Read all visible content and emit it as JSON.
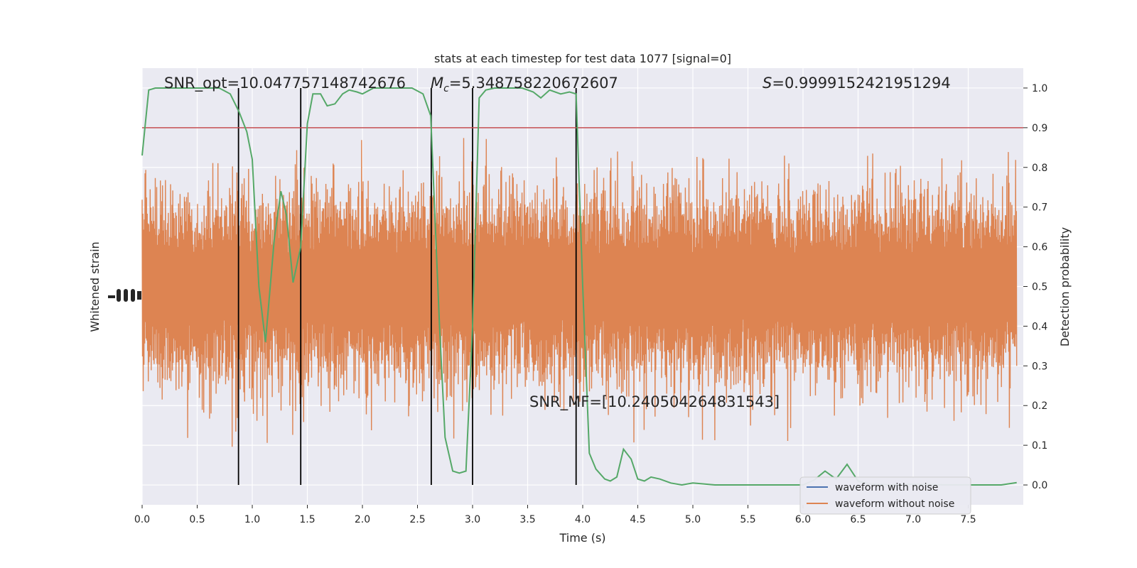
{
  "chart_data": {
    "type": "line",
    "title": "stats at each timestep for test data 1077 [signal=0]",
    "xlabel": "Time (s)",
    "ylabel_left": "Whitened strain",
    "ylabel_right": "Detection probability",
    "xlim": [
      0.0,
      8.0
    ],
    "ylim_right": [
      -0.05,
      1.05
    ],
    "x_ticks": [
      "0.0",
      "0.5",
      "1.0",
      "1.5",
      "2.0",
      "2.5",
      "3.0",
      "3.5",
      "4.0",
      "4.5",
      "5.0",
      "5.5",
      "6.0",
      "6.5",
      "7.0",
      "7.5"
    ],
    "x_tick_values": [
      0,
      0.5,
      1,
      1.5,
      2,
      2.5,
      3,
      3.5,
      4,
      4.5,
      5,
      5.5,
      6,
      6.5,
      7,
      7.5
    ],
    "y_ticks_right": [
      "0.0",
      "0.1",
      "0.2",
      "0.3",
      "0.4",
      "0.5",
      "0.6",
      "0.7",
      "0.8",
      "0.9",
      "1.0"
    ],
    "y_tick_values_right": [
      0,
      0.1,
      0.2,
      0.3,
      0.4,
      0.5,
      0.6,
      0.7,
      0.8,
      0.9,
      1.0
    ],
    "grid": true,
    "legend_position": "lower-right",
    "legend": [
      {
        "name": "waveform with noise",
        "color": "#4c72b0"
      },
      {
        "name": "waveform without noise",
        "color": "#dd8452"
      }
    ],
    "threshold": {
      "y": 0.9,
      "color": "#c44e52"
    },
    "vertical_lines_x": [
      0.875,
      1.44,
      2.625,
      3.0,
      3.94
    ],
    "detection_probability": {
      "color": "#55a868",
      "x": [
        0.0,
        0.06,
        0.12,
        0.25,
        0.5,
        0.7,
        0.8,
        0.88,
        0.95,
        1.0,
        1.06,
        1.12,
        1.2,
        1.26,
        1.31,
        1.37,
        1.44,
        1.5,
        1.55,
        1.62,
        1.68,
        1.75,
        1.82,
        1.88,
        1.95,
        2.0,
        2.1,
        2.2,
        2.3,
        2.45,
        2.55,
        2.62,
        2.7,
        2.75,
        2.82,
        2.88,
        2.94,
        3.0,
        3.06,
        3.12,
        3.2,
        3.3,
        3.45,
        3.55,
        3.62,
        3.7,
        3.8,
        3.88,
        3.94,
        4.0,
        4.06,
        4.12,
        4.2,
        4.25,
        4.31,
        4.37,
        4.44,
        4.5,
        4.56,
        4.62,
        4.7,
        4.8,
        4.9,
        5.0,
        5.2,
        5.5,
        5.8,
        6.0,
        6.1,
        6.2,
        6.3,
        6.4,
        6.5,
        6.6,
        6.8,
        7.0,
        7.3,
        7.6,
        7.8,
        7.94
      ],
      "y": [
        0.83,
        0.995,
        1.0,
        1.0,
        1.0,
        1.0,
        0.985,
        0.94,
        0.89,
        0.82,
        0.5,
        0.36,
        0.62,
        0.74,
        0.68,
        0.51,
        0.6,
        0.91,
        0.985,
        0.985,
        0.955,
        0.96,
        0.985,
        0.995,
        0.99,
        0.985,
        1.0,
        1.0,
        1.0,
        1.0,
        0.985,
        0.93,
        0.4,
        0.12,
        0.035,
        0.03,
        0.035,
        0.4,
        0.975,
        0.995,
        1.0,
        1.0,
        1.0,
        0.99,
        0.975,
        0.995,
        0.985,
        0.99,
        0.985,
        0.5,
        0.08,
        0.04,
        0.015,
        0.01,
        0.02,
        0.09,
        0.065,
        0.015,
        0.01,
        0.02,
        0.015,
        0.005,
        0.0,
        0.005,
        0.0,
        0.0,
        0.0,
        0.0,
        0.012,
        0.035,
        0.015,
        0.052,
        0.01,
        0.003,
        0.0,
        0.002,
        0.0,
        0.0,
        0.0,
        0.006
      ]
    },
    "strain": {
      "color": "#dd8452",
      "center": 0.5,
      "envelope": 0.33
    }
  },
  "annotations": {
    "snr_opt": "SNR_opt=10.047757148742676",
    "mc_symbol": "M",
    "mc_sub": "c",
    "mc_value": "=5.348758220672607",
    "s_symbol": "S",
    "s_value": "=0.9999152421951294",
    "snr_mf": "SNR_MF=[10.240504264831543]"
  }
}
